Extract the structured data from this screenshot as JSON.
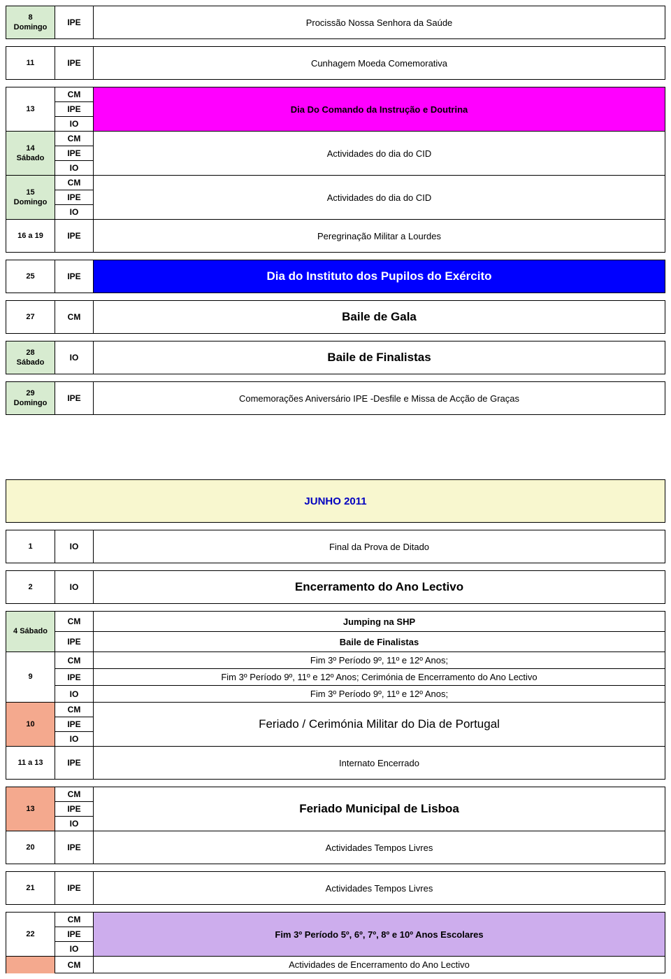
{
  "colors": {
    "lightgreen": "#d7ebd0",
    "magenta": "#ff00ff",
    "blue": "#0000ff",
    "yellow": "#f8f7cf",
    "blue_text": "#0000c0",
    "salmon": "#f4a98e",
    "lilac": "#cdaded",
    "white": "#ffffff"
  },
  "t1": {
    "rows": [
      {
        "date_lines": [
          "8",
          "Domingo"
        ],
        "date_bg": "#d7ebd0",
        "code": "IPE",
        "desc": "Procissão Nossa Senhora da Saúde",
        "tall": true
      },
      {
        "gap": true
      },
      {
        "date_lines": [
          "11"
        ],
        "code": "IPE",
        "desc": "Cunhagem Moeda Comemorativa",
        "tall": true
      },
      {
        "gap": true
      },
      {
        "subrows3": {
          "date_lines": [
            "13"
          ],
          "codes": [
            "CM",
            "IPE",
            "IO"
          ],
          "desc": "Dia Do Comando da Instrução e Doutrina",
          "desc_bg": "#ff00ff",
          "desc_bold": true
        }
      },
      {
        "subrows3": {
          "date_lines": [
            "14",
            "Sábado"
          ],
          "date_bg": "#d7ebd0",
          "codes": [
            "CM",
            "IPE",
            "IO"
          ],
          "desc": "Actividades do dia do CID"
        }
      },
      {
        "subrows3": {
          "date_lines": [
            "15",
            "Domingo"
          ],
          "date_bg": "#d7ebd0",
          "codes": [
            "CM",
            "IPE",
            "IO"
          ],
          "desc": "Actividades do dia do CID"
        }
      },
      {
        "date_lines": [
          "16 a 19"
        ],
        "code": "IPE",
        "desc": "Peregrinação Militar a Lourdes",
        "tall": true
      },
      {
        "gap": true
      },
      {
        "date_lines": [
          "25"
        ],
        "code": "IPE",
        "desc": "Dia do Instituto dos Pupilos do Exército",
        "desc_bg": "#0000ff",
        "desc_color": "#ffffff",
        "desc_bold": true,
        "desc_big": true,
        "tall": true
      },
      {
        "gap": true
      },
      {
        "date_lines": [
          "27"
        ],
        "code": "CM",
        "desc": "Baile de Gala",
        "desc_bold": true,
        "desc_big": true,
        "tall": true
      },
      {
        "gap": true
      },
      {
        "date_lines": [
          "28",
          "Sábado"
        ],
        "date_bg": "#d7ebd0",
        "code": "IO",
        "desc": "Baile de Finalistas",
        "desc_bold": true,
        "desc_big": true,
        "tall": true
      },
      {
        "gap": true
      },
      {
        "date_lines": [
          "29",
          "Domingo"
        ],
        "date_bg": "#d7ebd0",
        "code": "IPE",
        "desc": "Comemorações Aniversário IPE -Desfile e Missa de Acção de Graças",
        "tall": true
      }
    ]
  },
  "month_title": "JUNHO 2011",
  "t2": {
    "rows": [
      {
        "date_lines": [
          "1"
        ],
        "code": "IO",
        "desc": "Final da Prova de Ditado",
        "tall": true
      },
      {
        "gap": true
      },
      {
        "date_lines": [
          "2"
        ],
        "code": "IO",
        "desc": "Encerramento do Ano Lectivo",
        "desc_bold": true,
        "desc_big": true,
        "tall": true
      },
      {
        "gap": true
      },
      {
        "subrows2": {
          "date_lines": [
            "4 Sábado"
          ],
          "date_bg": "#d7ebd0",
          "lines": [
            {
              "code": "CM",
              "desc": "Jumping na SHP",
              "desc_bold": true
            },
            {
              "code": "IPE",
              "desc": "Baile de Finalistas",
              "desc_bold": true
            }
          ]
        }
      },
      {
        "subrows_each": {
          "date_lines": [
            "9"
          ],
          "lines": [
            {
              "code": "CM",
              "desc": "Fim 3º Período 9º, 11º e 12º Anos;"
            },
            {
              "code": "IPE",
              "desc": "Fim 3º Período 9º, 11º e 12º Anos; Cerimónia de Encerramento do Ano Lectivo"
            },
            {
              "code": "IO",
              "desc": "Fim 3º Período 9º, 11º e 12º Anos;"
            }
          ]
        }
      },
      {
        "subrows3": {
          "date_lines": [
            "10"
          ],
          "date_bg": "#f4a98e",
          "codes": [
            "CM",
            "IPE",
            "IO"
          ],
          "desc": "Feriado / Cerimónia Militar do Dia de Portugal",
          "desc_big": true
        }
      },
      {
        "date_lines": [
          "11 a 13"
        ],
        "code": "IPE",
        "desc": "Internato Encerrado",
        "tall": true
      },
      {
        "gap": true
      },
      {
        "subrows3": {
          "date_lines": [
            "13"
          ],
          "date_bg": "#f4a98e",
          "codes": [
            "CM",
            "IPE",
            "IO"
          ],
          "desc": "Feriado Municipal de Lisboa",
          "desc_bold": true,
          "desc_big": true
        }
      },
      {
        "date_lines": [
          "20"
        ],
        "code": "IPE",
        "desc": "Actividades Tempos Livres",
        "tall": true
      },
      {
        "gap": true
      },
      {
        "date_lines": [
          "21"
        ],
        "code": "IPE",
        "desc": "Actividades Tempos Livres",
        "tall": true
      },
      {
        "gap": true
      },
      {
        "subrows3": {
          "date_lines": [
            "22"
          ],
          "codes": [
            "CM",
            "IPE",
            "IO"
          ],
          "desc": "Fim 3º Período 5º, 6º, 7º, 8º e 10º Anos Escolares",
          "desc_bg": "#cdaded",
          "desc_bold": true
        }
      },
      {
        "partial": {
          "code": "CM",
          "desc": "Actividades de Encerramento do Ano Lectivo",
          "date_bg": "#f4a98e"
        }
      }
    ]
  }
}
